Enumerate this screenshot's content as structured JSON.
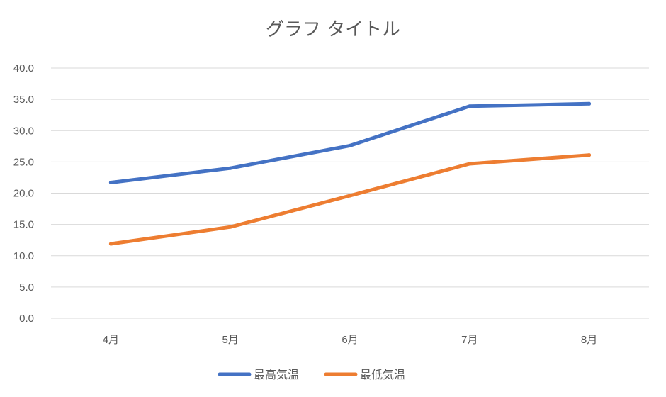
{
  "chart_data": {
    "type": "line",
    "title": "グラフ タイトル",
    "xlabel": "",
    "ylabel": "",
    "categories": [
      "4月",
      "5月",
      "6月",
      "7月",
      "8月"
    ],
    "series": [
      {
        "name": "最高気温",
        "color": "#4472C4",
        "values": [
          21.7,
          24.0,
          27.6,
          33.9,
          34.3
        ]
      },
      {
        "name": "最低気温",
        "color": "#ED7D31",
        "values": [
          11.9,
          14.6,
          19.6,
          24.7,
          26.1
        ]
      }
    ],
    "ylim": [
      0,
      40
    ],
    "ystep": 5,
    "y_tick_decimals": 1,
    "grid": true,
    "gridline_color": "#d9d9d9",
    "legend_position": "bottom"
  }
}
